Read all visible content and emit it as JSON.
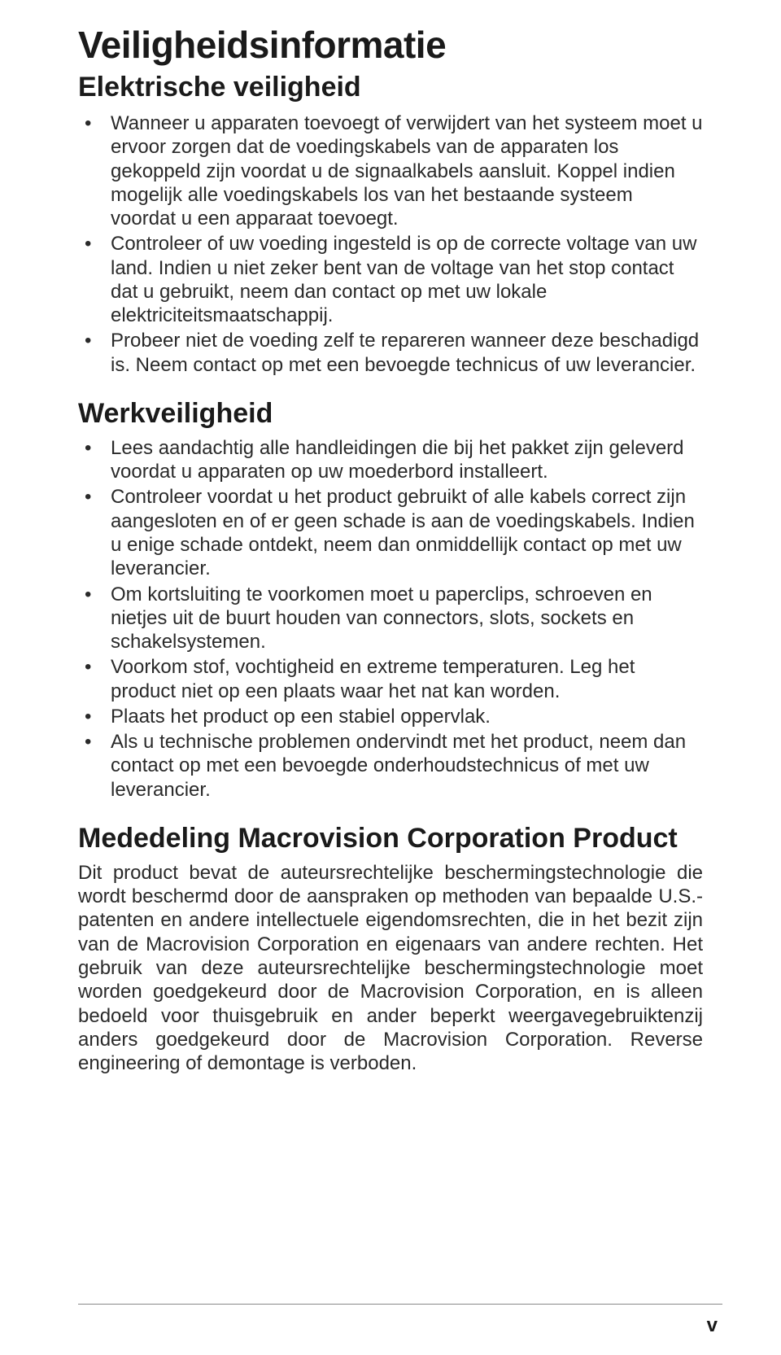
{
  "typography": {
    "title_fontsize": 46,
    "section_fontsize": 34,
    "body_fontsize": 24,
    "line_height": 1.22,
    "title_color": "#1a1a1a",
    "body_color": "#2a2a2a",
    "background": "#ffffff",
    "divider_color": "#8a8a8a"
  },
  "title": "Veiligheidsinformatie",
  "sections": [
    {
      "heading": "Elektrische veiligheid",
      "items": [
        "Wanneer u apparaten toevoegt of verwijdert van het systeem moet u ervoor zorgen dat de voedingskabels van de apparaten los gekoppeld zijn voordat u de signaalkabels aansluit. Koppel indien mogelijk alle voedingskabels los van het bestaande systeem voordat u een apparaat toevoegt.",
        "Controleer of uw voeding ingesteld is op de correcte voltage van uw land. Indien u niet zeker bent van de voltage van het stop contact dat u gebruikt, neem dan contact op met uw lokale elektriciteitsmaatschappij.",
        "Probeer niet de voeding zelf te repareren wanneer deze beschadigd is. Neem contact op met een bevoegde technicus of uw leverancier."
      ]
    },
    {
      "heading": "Werkveiligheid",
      "items": [
        "Lees aandachtig alle handleidingen die bij het pakket zijn geleverd voordat u apparaten op uw moederbord installeert.",
        "Controleer voordat u het product gebruikt of alle kabels correct zijn aangesloten en of er geen schade is aan de voedingskabels. Indien u enige schade ontdekt, neem dan onmiddellijk contact op met uw leverancier.",
        "Om kortsluiting te voorkomen moet u paperclips, schroeven en nietjes uit de buurt houden van connectors, slots, sockets en schakelsystemen.",
        "Voorkom stof, vochtigheid en extreme temperaturen. Leg het product niet op een plaats waar het nat kan worden.",
        "Plaats het product op een stabiel oppervlak.",
        "Als u technische problemen ondervindt met het product, neem dan contact op met een bevoegde onderhoudstechnicus of met uw leverancier."
      ]
    },
    {
      "heading": "Mededeling Macrovision Corporation Product",
      "paragraph": "Dit product bevat de auteursrechtelijke beschermingstechnologie die wordt beschermd door de aanspraken op methoden van bepaalde U.S.-patenten en andere intellectuele eigendomsrechten, die in het bezit zijn van de Macrovision Corporation en eigenaars van andere rechten. Het gebruik van deze auteursrechtelijke beschermingstechnologie moet worden goedgekeurd door de Macrovision Corporation, en is alleen bedoeld voor thuisgebruik en ander beperkt weergavegebruiktenzij anders goedgekeurd door de Macrovision Corporation. Reverse engineering of demontage is verboden."
    }
  ],
  "page_number": "v"
}
